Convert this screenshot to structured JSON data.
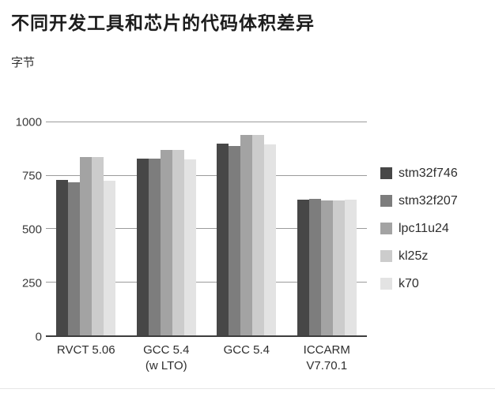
{
  "page": {
    "title": "不同开发工具和芯片的代码体积差异",
    "y_unit_label": "字节"
  },
  "chart_data": {
    "type": "bar",
    "title": "不同开发工具和芯片的代码体积差异",
    "xlabel": "",
    "ylabel": "字节",
    "ylim": [
      0,
      1000
    ],
    "yticks": [
      0,
      250,
      500,
      750,
      1000
    ],
    "grid": true,
    "legend_position": "right",
    "categories": [
      "RVCT 5.06",
      "GCC 5.4 (w LTO)",
      "GCC 5.4",
      "ICCARM V7.70.1"
    ],
    "category_label_lines": [
      [
        "RVCT 5.06"
      ],
      [
        "GCC 5.4",
        "(w LTO)"
      ],
      [
        "GCC 5.4"
      ],
      [
        "ICCARM",
        "V7.70.1"
      ]
    ],
    "series": [
      {
        "name": "stm32f746",
        "color": "#474747",
        "values": [
          730,
          831,
          901,
          636
        ]
      },
      {
        "name": "stm32f207",
        "color": "#7d7d7d",
        "values": [
          718,
          828,
          888,
          642
        ]
      },
      {
        "name": "lpc11u24",
        "color": "#a3a3a3",
        "values": [
          836,
          870,
          941,
          633
        ]
      },
      {
        "name": "kl25z",
        "color": "#cccccc",
        "values": [
          836,
          870,
          941,
          633
        ]
      },
      {
        "name": "k70",
        "color": "#e3e3e3",
        "values": [
          726,
          825,
          898,
          638
        ]
      }
    ],
    "colors": {
      "gridline": "#9b9b9b",
      "axis_line": "#3d3d3d",
      "text": "#2e2e2e"
    }
  }
}
